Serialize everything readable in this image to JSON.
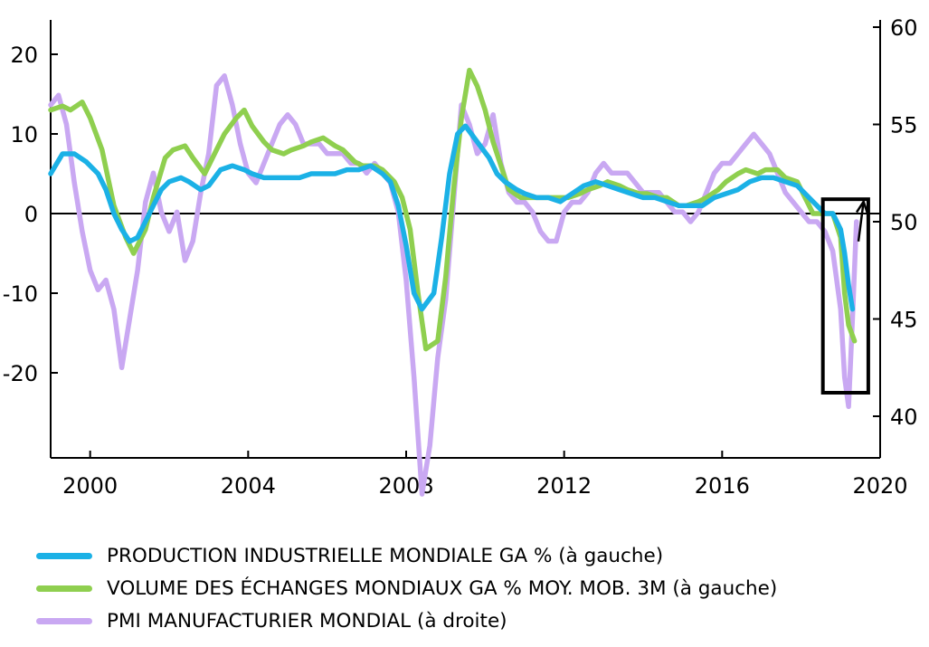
{
  "chart_data": {
    "type": "line",
    "x_range": [
      1999,
      2020
    ],
    "x_ticks": [
      "2000",
      "2004",
      "2008",
      "2012",
      "2016",
      "2020"
    ],
    "x_tick_values": [
      2000,
      2004,
      2008,
      2012,
      2016,
      2020
    ],
    "y_left": {
      "range": [
        -24,
        20
      ],
      "ticks": [
        "20",
        "10",
        "0",
        "-10",
        "-20"
      ],
      "tick_values": [
        20,
        10,
        0,
        -10,
        -20
      ]
    },
    "y_right": {
      "range": [
        38,
        60
      ],
      "ticks": [
        "60",
        "55",
        "50",
        "45",
        "40"
      ],
      "tick_values": [
        60,
        55,
        50,
        45,
        40
      ]
    },
    "zero_line": 0,
    "grid": false,
    "legend_position": "bottom",
    "series": [
      {
        "name": "VOLUME DES ÉCHANGES MONDIAUX GA % MOY. MOB. 3M (à gauche)",
        "axis": "left",
        "color": "#8fcf4f",
        "points": [
          [
            1999.0,
            13
          ],
          [
            1999.3,
            13.5
          ],
          [
            1999.5,
            13
          ],
          [
            1999.8,
            14
          ],
          [
            2000.0,
            12
          ],
          [
            2000.3,
            8
          ],
          [
            2000.6,
            1
          ],
          [
            2000.9,
            -3
          ],
          [
            2001.1,
            -5
          ],
          [
            2001.4,
            -2
          ],
          [
            2001.6,
            2
          ],
          [
            2001.9,
            7
          ],
          [
            2002.1,
            8
          ],
          [
            2002.4,
            8.5
          ],
          [
            2002.6,
            7
          ],
          [
            2002.9,
            5
          ],
          [
            2003.1,
            7
          ],
          [
            2003.4,
            10
          ],
          [
            2003.7,
            12
          ],
          [
            2003.9,
            13
          ],
          [
            2004.1,
            11
          ],
          [
            2004.4,
            9
          ],
          [
            2004.6,
            8
          ],
          [
            2004.9,
            7.5
          ],
          [
            2005.1,
            8
          ],
          [
            2005.4,
            8.5
          ],
          [
            2005.6,
            9
          ],
          [
            2005.9,
            9.5
          ],
          [
            2006.2,
            8.5
          ],
          [
            2006.4,
            8
          ],
          [
            2006.7,
            6.5
          ],
          [
            2006.9,
            6
          ],
          [
            2007.2,
            6
          ],
          [
            2007.4,
            5.5
          ],
          [
            2007.7,
            4
          ],
          [
            2007.9,
            2
          ],
          [
            2008.1,
            -2
          ],
          [
            2008.3,
            -10
          ],
          [
            2008.5,
            -17
          ],
          [
            2008.8,
            -16
          ],
          [
            2009.0,
            -8
          ],
          [
            2009.2,
            3
          ],
          [
            2009.4,
            12
          ],
          [
            2009.6,
            18
          ],
          [
            2009.8,
            16
          ],
          [
            2010.0,
            13
          ],
          [
            2010.2,
            9
          ],
          [
            2010.4,
            6
          ],
          [
            2010.6,
            3
          ],
          [
            2010.9,
            2
          ],
          [
            2011.1,
            2
          ],
          [
            2011.4,
            2
          ],
          [
            2011.6,
            2
          ],
          [
            2011.9,
            2
          ],
          [
            2012.1,
            2
          ],
          [
            2012.4,
            2.5
          ],
          [
            2012.6,
            3
          ],
          [
            2012.9,
            3.5
          ],
          [
            2013.1,
            4
          ],
          [
            2013.4,
            3.5
          ],
          [
            2013.6,
            3
          ],
          [
            2013.9,
            2.5
          ],
          [
            2014.1,
            2.5
          ],
          [
            2014.4,
            2
          ],
          [
            2014.6,
            2
          ],
          [
            2014.9,
            1
          ],
          [
            2015.1,
            1
          ],
          [
            2015.4,
            1.5
          ],
          [
            2015.6,
            2
          ],
          [
            2015.9,
            3
          ],
          [
            2016.1,
            4
          ],
          [
            2016.4,
            5
          ],
          [
            2016.6,
            5.5
          ],
          [
            2016.9,
            5
          ],
          [
            2017.1,
            5.5
          ],
          [
            2017.4,
            5.5
          ],
          [
            2017.6,
            4.5
          ],
          [
            2017.9,
            4
          ],
          [
            2018.1,
            2
          ],
          [
            2018.3,
            0
          ],
          [
            2018.6,
            0
          ],
          [
            2018.8,
            0
          ],
          [
            2019.0,
            -3
          ],
          [
            2019.1,
            -10
          ],
          [
            2019.2,
            -14
          ],
          [
            2019.35,
            -16
          ]
        ]
      },
      {
        "name": "PRODUCTION INDUSTRIELLE MONDIALE GA % (à gauche)",
        "axis": "left",
        "color": "#1bb1e6",
        "points": [
          [
            1999.0,
            5
          ],
          [
            1999.3,
            7.5
          ],
          [
            1999.6,
            7.5
          ],
          [
            1999.9,
            6.5
          ],
          [
            2000.2,
            5
          ],
          [
            2000.4,
            3
          ],
          [
            2000.6,
            0
          ],
          [
            2000.8,
            -2
          ],
          [
            2001.0,
            -3.5
          ],
          [
            2001.2,
            -3
          ],
          [
            2001.4,
            -1
          ],
          [
            2001.6,
            1
          ],
          [
            2001.8,
            3
          ],
          [
            2002.0,
            4
          ],
          [
            2002.3,
            4.5
          ],
          [
            2002.5,
            4
          ],
          [
            2002.8,
            3
          ],
          [
            2003.0,
            3.5
          ],
          [
            2003.3,
            5.5
          ],
          [
            2003.6,
            6
          ],
          [
            2003.9,
            5.5
          ],
          [
            2004.1,
            5
          ],
          [
            2004.4,
            4.5
          ],
          [
            2004.7,
            4.5
          ],
          [
            2005.0,
            4.5
          ],
          [
            2005.3,
            4.5
          ],
          [
            2005.6,
            5
          ],
          [
            2005.9,
            5
          ],
          [
            2006.2,
            5
          ],
          [
            2006.5,
            5.5
          ],
          [
            2006.8,
            5.5
          ],
          [
            2007.1,
            6
          ],
          [
            2007.4,
            5
          ],
          [
            2007.6,
            4
          ],
          [
            2007.8,
            1
          ],
          [
            2008.0,
            -4
          ],
          [
            2008.2,
            -10
          ],
          [
            2008.4,
            -12
          ],
          [
            2008.7,
            -10
          ],
          [
            2008.9,
            -3
          ],
          [
            2009.1,
            5
          ],
          [
            2009.3,
            10
          ],
          [
            2009.5,
            11
          ],
          [
            2009.8,
            9
          ],
          [
            2010.1,
            7
          ],
          [
            2010.3,
            5
          ],
          [
            2010.5,
            4
          ],
          [
            2010.8,
            3
          ],
          [
            2011.0,
            2.5
          ],
          [
            2011.3,
            2
          ],
          [
            2011.6,
            2
          ],
          [
            2011.9,
            1.5
          ],
          [
            2012.2,
            2.5
          ],
          [
            2012.5,
            3.5
          ],
          [
            2012.8,
            4
          ],
          [
            2013.1,
            3.5
          ],
          [
            2013.4,
            3
          ],
          [
            2013.7,
            2.5
          ],
          [
            2014.0,
            2
          ],
          [
            2014.3,
            2
          ],
          [
            2014.6,
            1.5
          ],
          [
            2014.9,
            1
          ],
          [
            2015.2,
            1
          ],
          [
            2015.5,
            1
          ],
          [
            2015.8,
            2
          ],
          [
            2016.1,
            2.5
          ],
          [
            2016.4,
            3
          ],
          [
            2016.7,
            4
          ],
          [
            2017.0,
            4.5
          ],
          [
            2017.3,
            4.5
          ],
          [
            2017.6,
            4
          ],
          [
            2017.9,
            3.5
          ],
          [
            2018.2,
            2
          ],
          [
            2018.4,
            1
          ],
          [
            2018.6,
            0
          ],
          [
            2018.8,
            0
          ],
          [
            2019.0,
            -2
          ],
          [
            2019.1,
            -5
          ],
          [
            2019.2,
            -9
          ],
          [
            2019.3,
            -12
          ]
        ]
      },
      {
        "name": "PMI MANUFACTURIER MONDIAL (à droite)",
        "axis": "right",
        "color": "#c9a8f2",
        "points": [
          [
            1999.0,
            56
          ],
          [
            1999.2,
            56.5
          ],
          [
            1999.4,
            55
          ],
          [
            1999.6,
            52
          ],
          [
            1999.8,
            49.5
          ],
          [
            2000.0,
            47.5
          ],
          [
            2000.2,
            46.5
          ],
          [
            2000.4,
            47
          ],
          [
            2000.6,
            45.5
          ],
          [
            2000.8,
            42.5
          ],
          [
            2001.0,
            45
          ],
          [
            2001.2,
            47.5
          ],
          [
            2001.4,
            51
          ],
          [
            2001.6,
            52.5
          ],
          [
            2001.8,
            50.5
          ],
          [
            2002.0,
            49.5
          ],
          [
            2002.2,
            50.5
          ],
          [
            2002.4,
            48
          ],
          [
            2002.6,
            49
          ],
          [
            2002.8,
            51.5
          ],
          [
            2003.0,
            53.5
          ],
          [
            2003.2,
            57
          ],
          [
            2003.4,
            57.5
          ],
          [
            2003.6,
            56
          ],
          [
            2003.8,
            54
          ],
          [
            2004.0,
            52.5
          ],
          [
            2004.2,
            52
          ],
          [
            2004.4,
            53
          ],
          [
            2004.6,
            54
          ],
          [
            2004.8,
            55
          ],
          [
            2005.0,
            55.5
          ],
          [
            2005.2,
            55
          ],
          [
            2005.4,
            54
          ],
          [
            2005.6,
            54
          ],
          [
            2005.8,
            54
          ],
          [
            2006.0,
            53.5
          ],
          [
            2006.2,
            53.5
          ],
          [
            2006.4,
            53.5
          ],
          [
            2006.6,
            53
          ],
          [
            2006.8,
            53
          ],
          [
            2007.0,
            52.5
          ],
          [
            2007.2,
            53
          ],
          [
            2007.4,
            52.5
          ],
          [
            2007.6,
            52
          ],
          [
            2007.8,
            50.5
          ],
          [
            2008.0,
            47
          ],
          [
            2008.2,
            42
          ],
          [
            2008.4,
            36
          ],
          [
            2008.6,
            38.5
          ],
          [
            2008.8,
            43
          ],
          [
            2009.0,
            46
          ],
          [
            2009.2,
            51
          ],
          [
            2009.4,
            56
          ],
          [
            2009.6,
            55
          ],
          [
            2009.8,
            53.5
          ],
          [
            2010.0,
            54
          ],
          [
            2010.2,
            55.5
          ],
          [
            2010.4,
            53
          ],
          [
            2010.6,
            51.5
          ],
          [
            2010.8,
            51
          ],
          [
            2011.0,
            51
          ],
          [
            2011.2,
            50.5
          ],
          [
            2011.4,
            49.5
          ],
          [
            2011.6,
            49
          ],
          [
            2011.8,
            49
          ],
          [
            2012.0,
            50.5
          ],
          [
            2012.2,
            51
          ],
          [
            2012.4,
            51
          ],
          [
            2012.6,
            51.5
          ],
          [
            2012.8,
            52.5
          ],
          [
            2013.0,
            53
          ],
          [
            2013.2,
            52.5
          ],
          [
            2013.4,
            52.5
          ],
          [
            2013.6,
            52.5
          ],
          [
            2013.8,
            52
          ],
          [
            2014.0,
            51.5
          ],
          [
            2014.2,
            51.5
          ],
          [
            2014.4,
            51.5
          ],
          [
            2014.6,
            51
          ],
          [
            2014.8,
            50.5
          ],
          [
            2015.0,
            50.5
          ],
          [
            2015.2,
            50
          ],
          [
            2015.4,
            50.5
          ],
          [
            2015.6,
            51.5
          ],
          [
            2015.8,
            52.5
          ],
          [
            2016.0,
            53
          ],
          [
            2016.2,
            53
          ],
          [
            2016.4,
            53.5
          ],
          [
            2016.6,
            54
          ],
          [
            2016.8,
            54.5
          ],
          [
            2017.0,
            54
          ],
          [
            2017.2,
            53.5
          ],
          [
            2017.4,
            52.5
          ],
          [
            2017.6,
            51.5
          ],
          [
            2017.8,
            51
          ],
          [
            2018.0,
            50.5
          ],
          [
            2018.2,
            50
          ],
          [
            2018.4,
            50
          ],
          [
            2018.6,
            49.5
          ],
          [
            2018.8,
            48.5
          ],
          [
            2019.0,
            45.5
          ],
          [
            2019.1,
            42
          ],
          [
            2019.2,
            40.5
          ],
          [
            2019.3,
            45
          ],
          [
            2019.4,
            50
          ]
        ]
      }
    ],
    "annotation": {
      "box_x": [
        2018.55,
        2019.7
      ],
      "box_y_left": [
        -22.5,
        1.8
      ],
      "arrow_from": [
        2019.45,
        -3.5
      ],
      "arrow_to": [
        2019.58,
        1.5
      ]
    }
  },
  "legend": [
    {
      "label": "PRODUCTION INDUSTRIELLE MONDIALE GA % (à gauche)",
      "color": "#1bb1e6"
    },
    {
      "label": "VOLUME DES ÉCHANGES MONDIAUX GA % MOY. MOB. 3M (à gauche)",
      "color": "#8fcf4f"
    },
    {
      "label": "PMI MANUFACTURIER MONDIAL (à droite)",
      "color": "#c9a8f2"
    }
  ]
}
